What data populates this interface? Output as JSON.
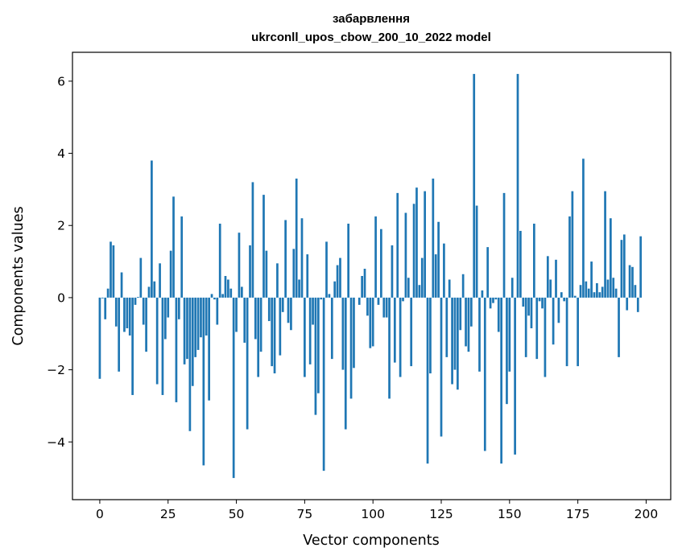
{
  "chart_data": {
    "type": "bar",
    "title_line1": "забарвлення",
    "title_line2": "ukrconll_upos_cbow_200_10_2022 model",
    "xlabel": "Vector components",
    "ylabel": "Components values",
    "xlim": [
      -10,
      209
    ],
    "ylim": [
      -5.6,
      6.8
    ],
    "xticks": [
      0,
      25,
      50,
      75,
      100,
      125,
      150,
      175,
      200
    ],
    "xtick_labels": [
      "0",
      "25",
      "50",
      "75",
      "100",
      "125",
      "150",
      "175",
      "200"
    ],
    "yticks": [
      -4,
      -2,
      0,
      2,
      4,
      6
    ],
    "ytick_labels": [
      "−4",
      "−2",
      "0",
      "2",
      "4",
      "6"
    ],
    "grid": false,
    "bar_color": "#1f77b4",
    "values": [
      -2.25,
      -0.02,
      -0.6,
      0.25,
      1.55,
      1.45,
      -0.8,
      -2.05,
      0.7,
      -0.95,
      -0.85,
      -1.05,
      -2.7,
      -0.2,
      0.02,
      1.1,
      -0.75,
      -1.5,
      0.3,
      3.8,
      0.45,
      -2.4,
      0.95,
      -2.7,
      -1.15,
      -0.55,
      1.3,
      2.8,
      -2.9,
      -0.6,
      2.25,
      -1.85,
      -1.7,
      -3.7,
      -2.45,
      -1.65,
      -1.45,
      -1.1,
      -4.65,
      -1.05,
      -2.85,
      0.1,
      -0.05,
      -0.75,
      2.05,
      0.1,
      0.6,
      0.5,
      0.25,
      -5.0,
      -0.95,
      1.8,
      0.3,
      -1.25,
      -3.65,
      1.45,
      3.2,
      -1.15,
      -2.2,
      -1.5,
      2.85,
      1.3,
      -0.65,
      -1.9,
      -2.1,
      0.95,
      -1.6,
      -0.4,
      2.15,
      -0.7,
      -0.9,
      1.35,
      3.3,
      0.5,
      2.2,
      -2.2,
      1.2,
      -1.85,
      -0.75,
      -3.25,
      -2.65,
      -0.05,
      -4.8,
      1.55,
      0.1,
      -1.7,
      0.45,
      0.9,
      1.1,
      -2.0,
      -3.65,
      2.05,
      -2.8,
      -1.95,
      0.0,
      -0.2,
      0.6,
      0.8,
      -0.5,
      -1.4,
      -1.35,
      2.25,
      -0.2,
      1.9,
      -0.55,
      -0.55,
      -2.8,
      1.45,
      -1.8,
      2.9,
      -2.2,
      -0.1,
      2.35,
      0.55,
      -1.9,
      2.6,
      3.05,
      0.35,
      1.1,
      2.95,
      -4.6,
      -2.1,
      3.3,
      1.2,
      2.1,
      -3.85,
      1.5,
      -1.65,
      0.5,
      -2.4,
      -2.0,
      -2.55,
      -0.9,
      0.65,
      -1.35,
      -1.5,
      -0.8,
      6.2,
      2.55,
      -2.05,
      0.2,
      -4.25,
      1.4,
      -0.3,
      -0.15,
      -0.05,
      -0.95,
      -4.6,
      2.9,
      -2.95,
      -2.05,
      0.55,
      -4.35,
      6.2,
      1.85,
      -0.25,
      -1.65,
      -0.5,
      -0.85,
      2.05,
      -1.7,
      -0.1,
      -0.3,
      -2.2,
      1.15,
      0.5,
      -1.3,
      1.05,
      -0.7,
      0.15,
      -0.1,
      -1.9,
      2.25,
      2.95,
      0.05,
      -1.9,
      0.35,
      3.85,
      0.45,
      0.25,
      1.0,
      0.15,
      0.4,
      0.15,
      0.3,
      2.95,
      0.5,
      2.2,
      0.55,
      0.25,
      -1.65,
      1.6,
      1.75,
      -0.35,
      0.9,
      0.85,
      0.35,
      -0.4,
      1.7
    ]
  }
}
